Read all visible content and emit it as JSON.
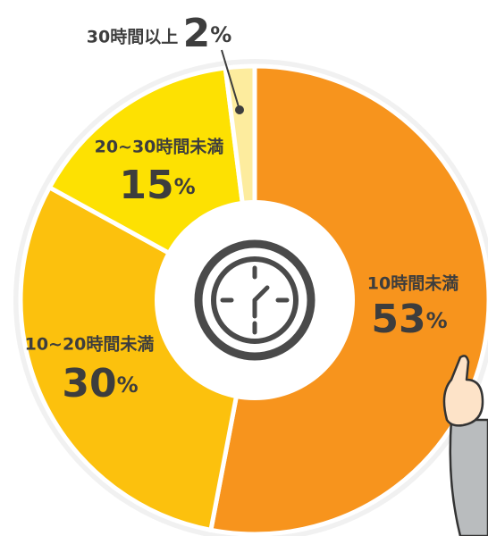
{
  "chart_data": {
    "type": "pie",
    "categories": [
      "10時間未満",
      "10~20時間未満",
      "20~30時間未満",
      "30時間以上"
    ],
    "values": [
      53,
      30,
      15,
      2
    ],
    "value_labels": [
      "53%",
      "30%",
      "15%",
      "2%"
    ],
    "colors": [
      "#f7941d",
      "#fcc10d",
      "#fde102",
      "#fdec9e"
    ]
  }
}
